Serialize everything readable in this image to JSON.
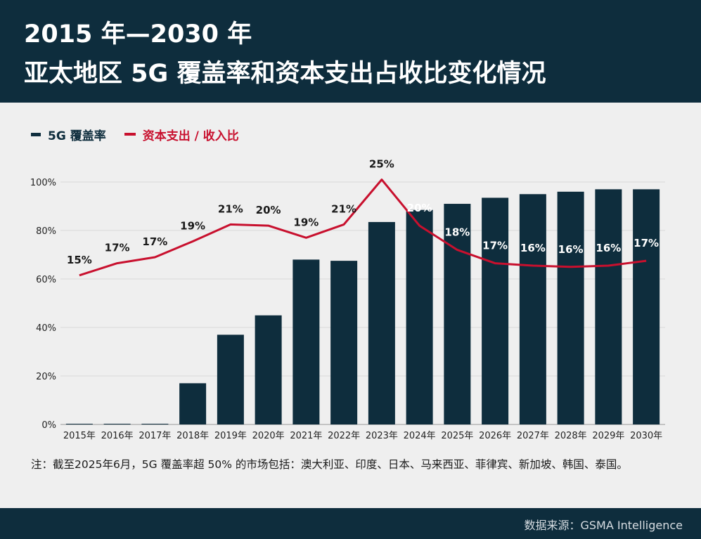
{
  "header": {
    "title_line1": "2015 年—2030 年",
    "title_line2": "亚太地区 5G 覆盖率和资本支出占收比变化情况"
  },
  "legend": {
    "bar_label": "5G 覆盖率",
    "line_label": "资本支出 / 收入比"
  },
  "colors": {
    "header_bg": "#0e2d3d",
    "bar": "#0e2d3d",
    "line": "#c8102e",
    "background": "#efefef"
  },
  "chart_data": {
    "type": "bar",
    "categories": [
      "2015年",
      "2016年",
      "2017年",
      "2018年",
      "2019年",
      "2020年",
      "2021年",
      "2022年",
      "2023年",
      "2024年",
      "2025年",
      "2026年",
      "2027年",
      "2028年",
      "2029年",
      "2030年"
    ],
    "y_ticks": [
      "0%",
      "20%",
      "40%",
      "60%",
      "80%",
      "100%"
    ],
    "ylim": [
      0,
      100
    ],
    "grid": true,
    "legend_position": "top-left",
    "series": [
      {
        "name": "5G 覆盖率",
        "type": "bar",
        "values": [
          0,
          0,
          0,
          17,
          37,
          45,
          68,
          67.5,
          83.5,
          88.5,
          91,
          93.5,
          95,
          96,
          97,
          97
        ]
      },
      {
        "name": "资本支出 / 收入比",
        "type": "line",
        "values": [
          61.5,
          66.5,
          69,
          75.5,
          82.5,
          82,
          77,
          82.5,
          101,
          82,
          72,
          66.5,
          65.5,
          65,
          65.5,
          67.5
        ],
        "labels": [
          "15%",
          "17%",
          "17%",
          "19%",
          "21%",
          "20%",
          "19%",
          "21%",
          "25%",
          "20%",
          "18%",
          "17%",
          "16%",
          "16%",
          "16%",
          "17%"
        ]
      }
    ]
  },
  "note": "注：截至2025年6月，5G 覆盖率超 50% 的市场包括：澳大利亚、印度、日本、马来西亚、菲律宾、新加坡、韩国、泰国。",
  "source": "数据来源：GSMA Intelligence"
}
